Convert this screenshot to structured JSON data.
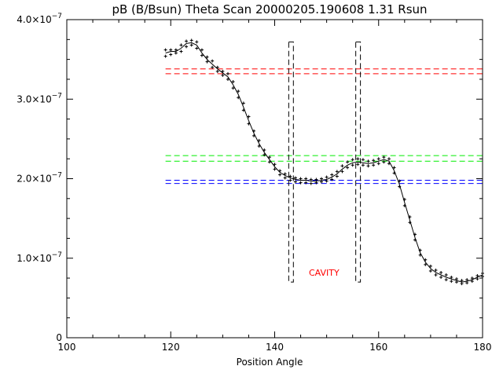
{
  "chart_data": {
    "type": "scatter",
    "title": "pB (B/Bsun) Theta Scan 20000205.190608 1.31 Rsun",
    "xlabel": "Position Angle",
    "ylabel": "",
    "xlim": [
      100,
      180
    ],
    "ylim": [
      0,
      4e-07
    ],
    "grid": false,
    "x_ticks": [
      {
        "value": 100,
        "label": "100"
      },
      {
        "value": 120,
        "label": "120"
      },
      {
        "value": 140,
        "label": "140"
      },
      {
        "value": 160,
        "label": "160"
      },
      {
        "value": 180,
        "label": "180"
      }
    ],
    "x_minor_step": 5,
    "y_ticks": [
      {
        "value": 0,
        "mantissa": "0",
        "exponent": ""
      },
      {
        "value": 1e-07,
        "mantissa": "1.0×10",
        "exponent": "−7"
      },
      {
        "value": 2e-07,
        "mantissa": "2.0×10",
        "exponent": "−7"
      },
      {
        "value": 3e-07,
        "mantissa": "3.0×10",
        "exponent": "−7"
      },
      {
        "value": 4e-07,
        "mantissa": "4.0×10",
        "exponent": "−7"
      }
    ],
    "y_minor_step": 2.5e-08,
    "series": [
      {
        "style": "line",
        "color": "#000000",
        "x": [
          119,
          120,
          121,
          122,
          123,
          124,
          125,
          126,
          127,
          128,
          129,
          130,
          131,
          132,
          133,
          134,
          135,
          136,
          137,
          138,
          139,
          140,
          141,
          142,
          143,
          144,
          145,
          146,
          147,
          148,
          149,
          150,
          151,
          152,
          153,
          154,
          155,
          156,
          157,
          158,
          159,
          160,
          161,
          162,
          163,
          164,
          165,
          166,
          167,
          168,
          169,
          170,
          171,
          172,
          173,
          174,
          175,
          176,
          177,
          178,
          179,
          180
        ],
        "y": [
          3.58e-07,
          3.6e-07,
          3.6e-07,
          3.64e-07,
          3.7e-07,
          3.71e-07,
          3.68e-07,
          3.58e-07,
          3.5e-07,
          3.44e-07,
          3.38e-07,
          3.33e-07,
          3.28e-07,
          3.18e-07,
          3.06e-07,
          2.9e-07,
          2.73e-07,
          2.57e-07,
          2.44e-07,
          2.33e-07,
          2.24e-07,
          2.15e-07,
          2.08e-07,
          2.04e-07,
          2.01e-07,
          1.99e-07,
          1.98e-07,
          1.98e-07,
          1.97e-07,
          1.97e-07,
          1.98e-07,
          1.99e-07,
          2.02e-07,
          2.06e-07,
          2.12e-07,
          2.17e-07,
          2.2e-07,
          2.21e-07,
          2.2e-07,
          2.19e-07,
          2.2e-07,
          2.22e-07,
          2.24e-07,
          2.22e-07,
          2.1e-07,
          1.93e-07,
          1.7e-07,
          1.48e-07,
          1.26e-07,
          1.07e-07,
          9.5e-08,
          8.7e-08,
          8.2e-08,
          7.9e-08,
          7.6e-08,
          7.4e-08,
          7.2e-08,
          7e-08,
          7.1e-08,
          7.3e-08,
          7.6e-08,
          7.9e-08
        ]
      },
      {
        "style": "plus",
        "color": "#000000",
        "x": [
          119,
          120,
          121,
          122,
          123,
          124,
          125,
          126,
          127,
          128,
          129,
          130,
          131,
          132,
          133,
          134,
          135,
          136,
          137,
          138,
          139,
          140,
          141,
          142,
          143,
          144,
          145,
          146,
          147,
          148,
          149,
          150,
          151,
          152,
          153,
          154,
          155,
          156,
          157,
          158,
          159,
          160,
          161,
          162,
          163,
          164,
          165,
          166,
          167,
          168,
          169,
          170,
          171,
          172,
          173,
          174,
          175,
          176,
          177,
          178,
          179,
          180
        ],
        "y": [
          3.62e-07,
          3.62e-07,
          3.62e-07,
          3.68e-07,
          3.73e-07,
          3.74e-07,
          3.72e-07,
          3.62e-07,
          3.53e-07,
          3.48e-07,
          3.4e-07,
          3.35e-07,
          3.32e-07,
          3.22e-07,
          3.1e-07,
          2.95e-07,
          2.78e-07,
          2.6e-07,
          2.48e-07,
          2.36e-07,
          2.27e-07,
          2.18e-07,
          2.1e-07,
          2.06e-07,
          2.03e-07,
          2.01e-07,
          2e-07,
          2e-07,
          1.99e-07,
          1.99e-07,
          2e-07,
          2.02e-07,
          2.05e-07,
          2.09e-07,
          2.16e-07,
          2.21e-07,
          2.24e-07,
          2.25e-07,
          2.24e-07,
          2.22e-07,
          2.23e-07,
          2.25e-07,
          2.27e-07,
          2.25e-07,
          2.14e-07,
          1.97e-07,
          1.74e-07,
          1.52e-07,
          1.3e-07,
          1.1e-07,
          9.8e-08,
          9e-08,
          8.5e-08,
          8.2e-08,
          7.9e-08,
          7.6e-08,
          7.4e-08,
          7.2e-08,
          7.3e-08,
          7.5e-08,
          7.8e-08,
          8.1e-08
        ]
      },
      {
        "style": "plus",
        "color": "#000000",
        "x": [
          119,
          120,
          121,
          122,
          123,
          124,
          125,
          126,
          127,
          128,
          129,
          130,
          131,
          132,
          133,
          134,
          135,
          136,
          137,
          138,
          139,
          140,
          141,
          142,
          143,
          144,
          145,
          146,
          147,
          148,
          149,
          150,
          151,
          152,
          153,
          154,
          155,
          156,
          157,
          158,
          159,
          160,
          161,
          162,
          163,
          164,
          165,
          166,
          167,
          168,
          169,
          170,
          171,
          172,
          173,
          174,
          175,
          176,
          177,
          178,
          179,
          180
        ],
        "y": [
          3.54e-07,
          3.56e-07,
          3.58e-07,
          3.6e-07,
          3.66e-07,
          3.68e-07,
          3.64e-07,
          3.55e-07,
          3.47e-07,
          3.4e-07,
          3.35e-07,
          3.3e-07,
          3.25e-07,
          3.14e-07,
          3.02e-07,
          2.86e-07,
          2.69e-07,
          2.54e-07,
          2.41e-07,
          2.3e-07,
          2.21e-07,
          2.12e-07,
          2.05e-07,
          2.01e-07,
          1.98e-07,
          1.96e-07,
          1.95e-07,
          1.95e-07,
          1.94e-07,
          1.95e-07,
          1.96e-07,
          1.97e-07,
          1.99e-07,
          2.03e-07,
          2.09e-07,
          2.14e-07,
          2.17e-07,
          2.18e-07,
          2.17e-07,
          2.16e-07,
          2.17e-07,
          2.19e-07,
          2.21e-07,
          2.19e-07,
          2.07e-07,
          1.9e-07,
          1.66e-07,
          1.45e-07,
          1.23e-07,
          1.04e-07,
          9.2e-08,
          8.4e-08,
          7.9e-08,
          7.6e-08,
          7.3e-08,
          7.1e-08,
          7e-08,
          6.8e-08,
          6.9e-08,
          7.1e-08,
          7.4e-08,
          7.7e-08
        ]
      }
    ],
    "reference_lines": [
      {
        "y": 3.38e-07,
        "x": [
          119,
          180
        ],
        "color": "#ff0000",
        "style": "dashed"
      },
      {
        "y": 3.32e-07,
        "x": [
          119,
          180
        ],
        "color": "#ff0000",
        "style": "dashed"
      },
      {
        "y": 2.29e-07,
        "x": [
          119,
          180
        ],
        "color": "#00ee00",
        "style": "dashed"
      },
      {
        "y": 2.22e-07,
        "x": [
          119,
          180
        ],
        "color": "#00ee00",
        "style": "dashed"
      },
      {
        "y": 1.98e-07,
        "x": [
          119,
          180
        ],
        "color": "#0000ff",
        "style": "dashed"
      },
      {
        "y": 1.94e-07,
        "x": [
          119,
          180
        ],
        "color": "#0000ff",
        "style": "dashed"
      }
    ],
    "boundary_boxes": [
      {
        "x": [
          142.7,
          143.6
        ],
        "y": [
          7e-08,
          3.72e-07
        ],
        "color": "#000000",
        "style": "dashed"
      },
      {
        "x": [
          155.6,
          156.5
        ],
        "y": [
          7e-08,
          3.72e-07
        ],
        "color": "#000000",
        "style": "dashed"
      }
    ],
    "annotations": [
      {
        "text": "CAVITY",
        "x": 149.5,
        "y": 7.8e-08,
        "color": "#ff0000"
      }
    ]
  }
}
